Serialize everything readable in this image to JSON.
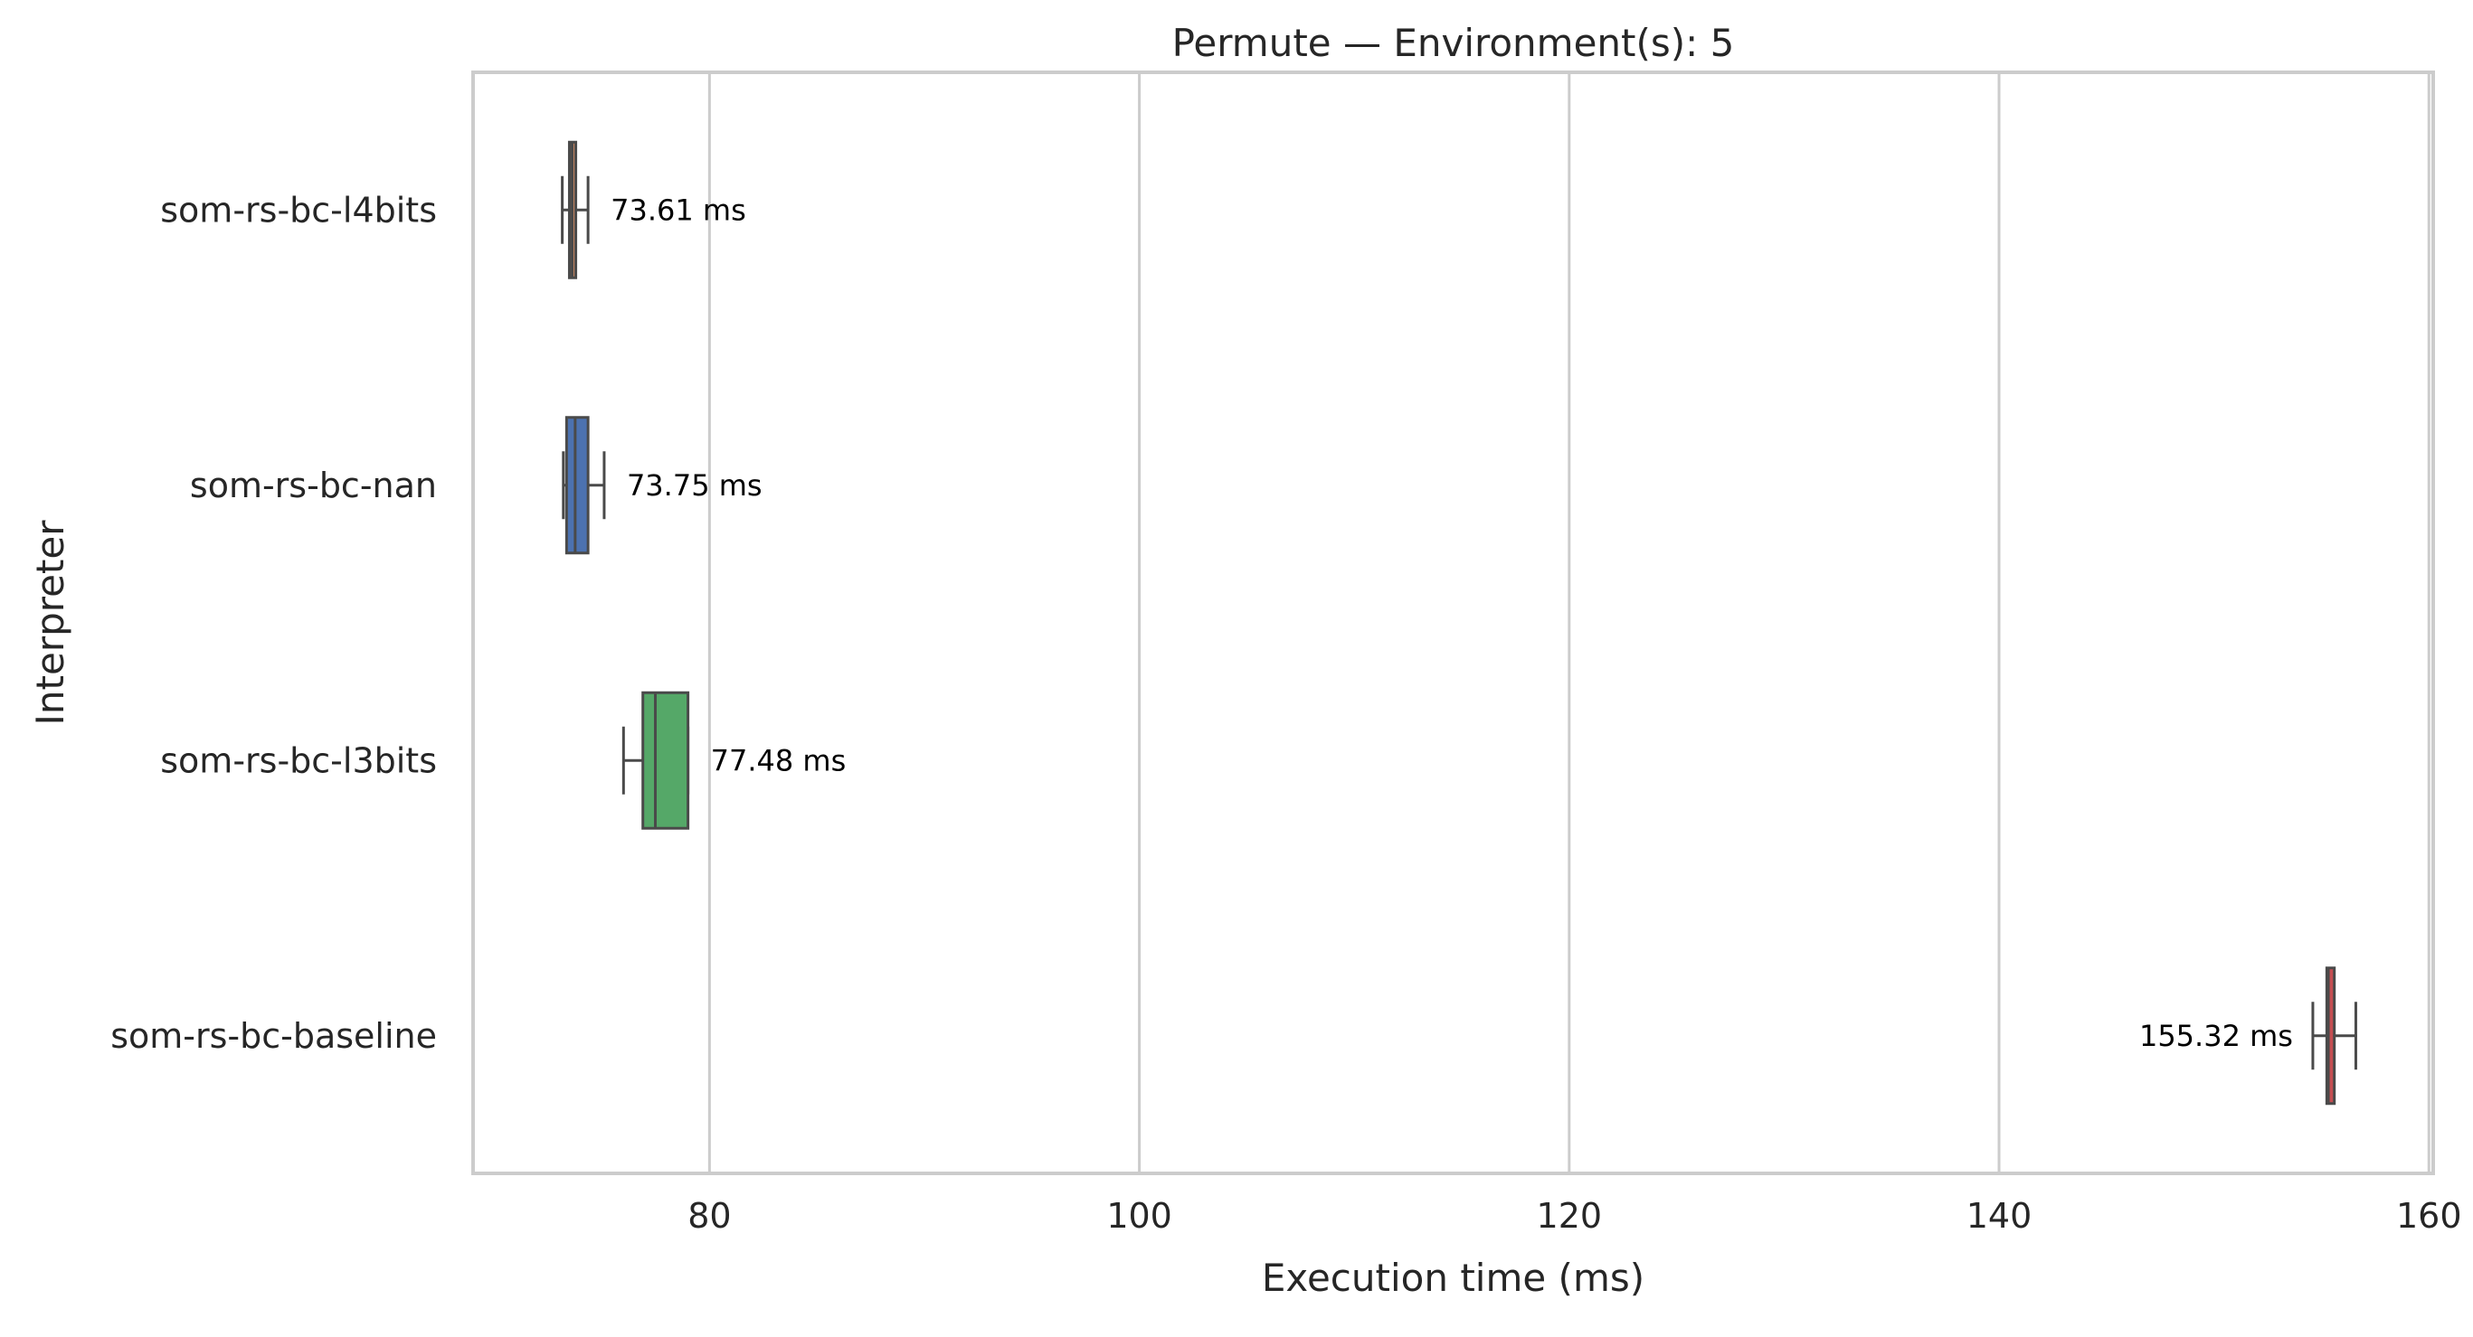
{
  "chart_data": {
    "type": "boxplot",
    "orientation": "horizontal",
    "title": "Permute — Environment(s): 5",
    "xlabel": "Execution time (ms)",
    "ylabel": "Interpreter",
    "xlim": [
      69.0,
      160.2
    ],
    "xticks": [
      80,
      100,
      120,
      140,
      160
    ],
    "xtick_labels": [
      "80",
      "100",
      "120",
      "140",
      "160"
    ],
    "grid": "vertical",
    "unit_suffix": " ms",
    "series": [
      {
        "name": "som-rs-bc-l4bits",
        "color": "#cc8963",
        "whisker_low": 73.15,
        "q1": 73.48,
        "median": 73.61,
        "q3": 73.78,
        "whisker_high": 74.35,
        "label": "73.61 ms"
      },
      {
        "name": "som-rs-bc-nan",
        "color": "#4c72b0",
        "whisker_low": 73.2,
        "q1": 73.35,
        "median": 73.75,
        "q3": 74.35,
        "whisker_high": 75.1,
        "label": "73.75 ms"
      },
      {
        "name": "som-rs-bc-l3bits",
        "color": "#55a868",
        "whisker_low": 76.0,
        "q1": 76.9,
        "median": 77.48,
        "q3": 79.0,
        "whisker_high": 79.0,
        "label": "77.48 ms"
      },
      {
        "name": "som-rs-bc-baseline",
        "color": "#c44e52",
        "whisker_low": 154.6,
        "q1": 155.25,
        "median": 155.32,
        "q3": 155.6,
        "whisker_high": 156.6,
        "label": "155.32 ms"
      }
    ]
  }
}
